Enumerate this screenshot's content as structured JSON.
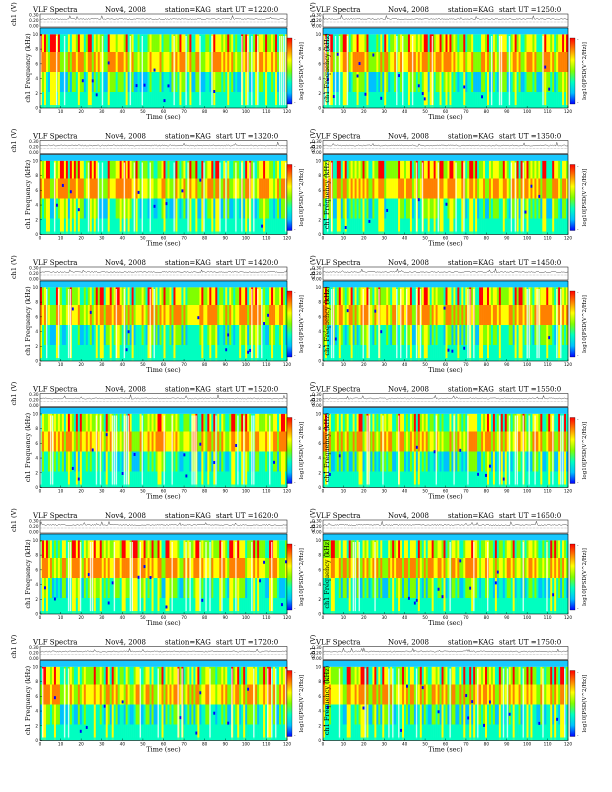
{
  "figure": {
    "panels": [
      {
        "title": "VLF Spectra",
        "date": "Nov4, 2008",
        "station": "station=KAG",
        "start": "start UT =1220:0"
      },
      {
        "title": "VLF Spectra",
        "date": "Nov4, 2008",
        "station": "station=KAG",
        "start": "start UT =1250:0"
      },
      {
        "title": "VLF Spectra",
        "date": "Nov4, 2008",
        "station": "station=KAG",
        "start": "start UT =1320:0"
      },
      {
        "title": "VLF Spectra",
        "date": "Nov4, 2008",
        "station": "station=KAG",
        "start": "start UT =1350:0"
      },
      {
        "title": "VLF Spectra",
        "date": "Nov4, 2008",
        "station": "station=KAG",
        "start": "start UT =1420:0"
      },
      {
        "title": "VLF Spectra",
        "date": "Nov4, 2008",
        "station": "station=KAG",
        "start": "start UT =1450:0"
      },
      {
        "title": "VLF Spectra",
        "date": "Nov4, 2008",
        "station": "station=KAG",
        "start": "start UT =1520:0"
      },
      {
        "title": "VLF Spectra",
        "date": "Nov4, 2008",
        "station": "station=KAG",
        "start": "start UT =1550:0"
      },
      {
        "title": "VLF Spectra",
        "date": "Nov4, 2008",
        "station": "station=KAG",
        "start": "start UT =1620:0"
      },
      {
        "title": "VLF Spectra",
        "date": "Nov4, 2008",
        "station": "station=KAG",
        "start": "start UT =1650:0"
      },
      {
        "title": "VLF Spectra",
        "date": "Nov4, 2008",
        "station": "station=KAG",
        "start": "start UT =1720:0"
      },
      {
        "title": "VLF Spectra",
        "date": "Nov4, 2008",
        "station": "station=KAG",
        "start": "start UT =1750:0"
      }
    ]
  },
  "chart_data": {
    "type": "heatmap",
    "panel_count": 12,
    "xlabel": "Time (sec)",
    "ylabel_spec": "ch1 Frequency (kHz)",
    "ylabel_wave": "ch1 (V)",
    "colorbar_label": "log10[PSD(V^2/Hz)]",
    "x_ticks": [
      "0",
      "10",
      "20",
      "30",
      "40",
      "50",
      "60",
      "70",
      "80",
      "90",
      "100",
      "110",
      "120"
    ],
    "xlim": [
      0,
      120
    ],
    "freq_ticks": [
      "0",
      "2",
      "4",
      "6",
      "8",
      "10"
    ],
    "freq_lim": [
      0,
      10
    ],
    "wave_ticks": [
      "0.00",
      "0.20",
      "0.30"
    ],
    "colorbar_ticks": [
      "-",
      "-"
    ],
    "colormap": [
      "#0000ff",
      "#00c0ff",
      "#00ffc0",
      "#80ff00",
      "#ffff00",
      "#ff8000",
      "#ff0000"
    ]
  }
}
